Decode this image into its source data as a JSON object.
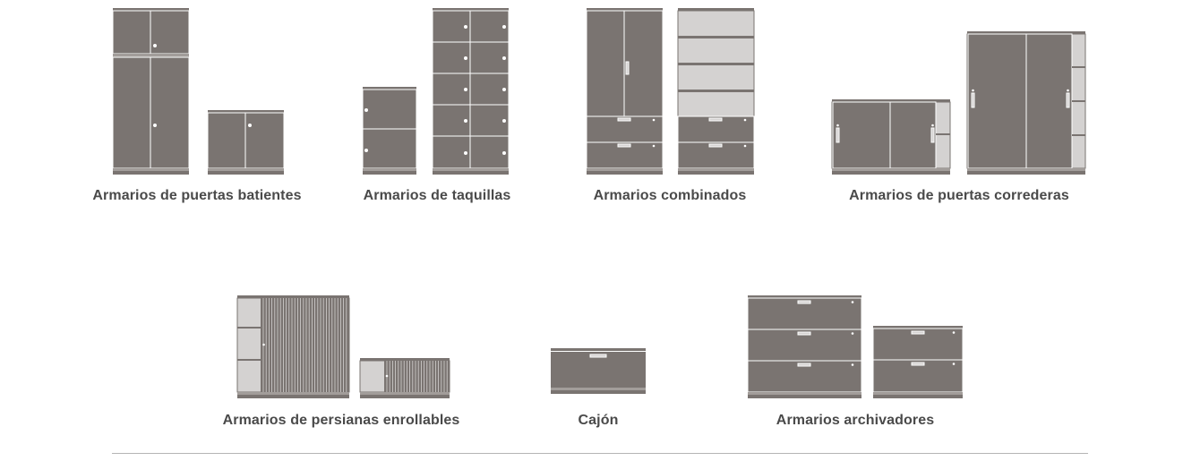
{
  "categories": [
    {
      "id": "swing",
      "label": "Armarios de puertas batientes"
    },
    {
      "id": "locker",
      "label": "Armarios de taquillas"
    },
    {
      "id": "combined",
      "label": "Armarios combinados"
    },
    {
      "id": "sliding",
      "label": "Armarios de puertas correderas"
    },
    {
      "id": "tambour",
      "label": "Armarios de persianas enrollables"
    },
    {
      "id": "drawer",
      "label": "Cajón"
    },
    {
      "id": "filing",
      "label": "Armarios archivadores"
    }
  ],
  "colors": {
    "cabinet": "#7a7471",
    "cabinet_light": "#d4d2d1",
    "label": "#4a4a4a",
    "divider": "#b5b5b5"
  }
}
